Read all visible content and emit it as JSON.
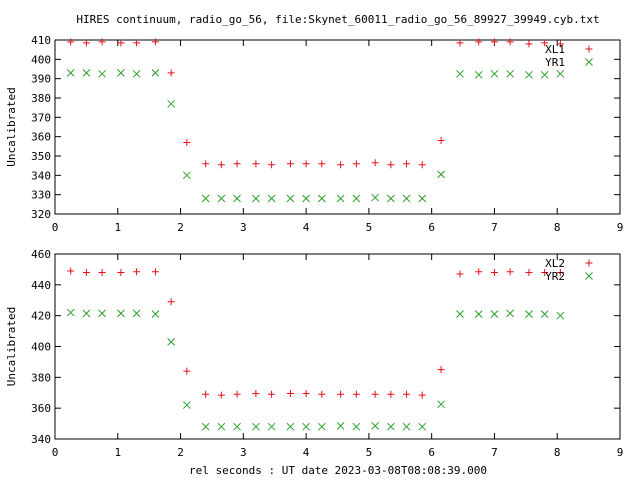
{
  "title": "HIRES continuum, radio_go_56, file:Skynet_60011_radio_go_56_89927_39949.cyb.txt",
  "xlabel": "rel seconds : UT date 2023-03-08T08:08:39.000",
  "colors": {
    "xl": "#e8101a",
    "yr": "#2aa12a",
    "axis": "#000000"
  },
  "chart_data": [
    {
      "type": "scatter",
      "ylabel": "Uncalibrated",
      "xlim": [
        0,
        9
      ],
      "ylim": [
        320,
        410
      ],
      "xticks": [
        "0",
        "1",
        "2",
        "3",
        "4",
        "5",
        "6",
        "7",
        "8",
        "9"
      ],
      "yticks": [
        "320",
        "330",
        "340",
        "350",
        "360",
        "370",
        "380",
        "390",
        "400",
        "410"
      ],
      "grid": false,
      "legend": "top-right",
      "series": [
        {
          "name": "XL1",
          "marker": "plus",
          "x": [
            0.25,
            0.5,
            0.75,
            1.05,
            1.3,
            1.6,
            1.85,
            2.1,
            2.4,
            2.65,
            2.9,
            3.2,
            3.45,
            3.75,
            4.0,
            4.25,
            4.55,
            4.8,
            5.1,
            5.35,
            5.6,
            5.85,
            6.15,
            6.45,
            6.75,
            7.0,
            7.25,
            7.55,
            7.8,
            8.05
          ],
          "y": [
            409,
            408.5,
            409,
            408.5,
            408.5,
            409,
            393,
            357,
            346,
            345.5,
            346,
            346,
            345.5,
            346,
            346,
            346,
            345.5,
            346,
            346.5,
            345.5,
            346,
            345.5,
            358,
            408.5,
            409,
            409,
            409,
            408,
            408.5,
            408
          ]
        },
        {
          "name": "YR1",
          "marker": "cross",
          "x": [
            0.25,
            0.5,
            0.75,
            1.05,
            1.3,
            1.6,
            1.85,
            2.1,
            2.4,
            2.65,
            2.9,
            3.2,
            3.45,
            3.75,
            4.0,
            4.25,
            4.55,
            4.8,
            5.1,
            5.35,
            5.6,
            5.85,
            6.15,
            6.45,
            6.75,
            7.0,
            7.25,
            7.55,
            7.8,
            8.05
          ],
          "y": [
            393,
            393,
            392.5,
            393,
            392.5,
            393,
            377,
            340,
            328,
            328,
            328,
            328,
            328,
            328,
            328,
            328,
            328,
            328,
            328.5,
            328,
            328,
            328,
            340.5,
            392.5,
            392,
            392.5,
            392.5,
            392,
            392,
            392.5
          ]
        }
      ]
    },
    {
      "type": "scatter",
      "ylabel": "Uncalibrated",
      "xlim": [
        0,
        9
      ],
      "ylim": [
        340,
        460
      ],
      "xticks": [
        "0",
        "1",
        "2",
        "3",
        "4",
        "5",
        "6",
        "7",
        "8",
        "9"
      ],
      "yticks": [
        "340",
        "360",
        "380",
        "400",
        "420",
        "440",
        "460"
      ],
      "grid": false,
      "legend": "top-right",
      "series": [
        {
          "name": "XL2",
          "marker": "plus",
          "x": [
            0.25,
            0.5,
            0.75,
            1.05,
            1.3,
            1.6,
            1.85,
            2.1,
            2.4,
            2.65,
            2.9,
            3.2,
            3.45,
            3.75,
            4.0,
            4.25,
            4.55,
            4.8,
            5.1,
            5.35,
            5.6,
            5.85,
            6.15,
            6.45,
            6.75,
            7.0,
            7.25,
            7.55,
            7.8,
            8.05
          ],
          "y": [
            449,
            448,
            448,
            448,
            448.5,
            448.5,
            429,
            384,
            369,
            368.5,
            369,
            369.5,
            369,
            369.5,
            369.5,
            369,
            369,
            369,
            369,
            369,
            369,
            368.5,
            385,
            447,
            448.5,
            448,
            448.5,
            448,
            448,
            448
          ]
        },
        {
          "name": "YR2",
          "marker": "cross",
          "x": [
            0.25,
            0.5,
            0.75,
            1.05,
            1.3,
            1.6,
            1.85,
            2.1,
            2.4,
            2.65,
            2.9,
            3.2,
            3.45,
            3.75,
            4.0,
            4.25,
            4.55,
            4.8,
            5.1,
            5.35,
            5.6,
            5.85,
            6.15,
            6.45,
            6.75,
            7.0,
            7.25,
            7.55,
            7.8,
            8.05
          ],
          "y": [
            422,
            421.5,
            421.5,
            421.5,
            421.5,
            421,
            403,
            362,
            348,
            348,
            348,
            348,
            348,
            348,
            348,
            348,
            348.5,
            348,
            348.5,
            348,
            348,
            348,
            362.5,
            421,
            421,
            421,
            421.5,
            421,
            421,
            420
          ]
        }
      ]
    }
  ]
}
